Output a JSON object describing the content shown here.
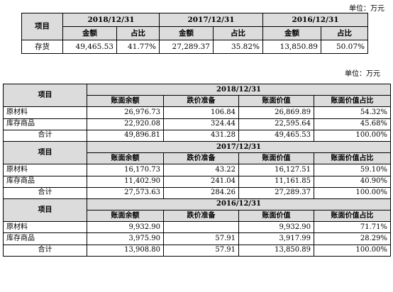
{
  "unit_label": "单位：万元",
  "summary": {
    "item_header": "项目",
    "dates": [
      "2018/12/31",
      "2017/12/31",
      "2016/12/31"
    ],
    "sub_headers": [
      "金额",
      "占比"
    ],
    "row": {
      "label": "存货",
      "values": [
        "49,465.53",
        "41.77%",
        "27,289.37",
        "35.82%",
        "13,850.89",
        "50.07%"
      ]
    }
  },
  "detail": {
    "item_header": "项目",
    "col_headers": [
      "账面余额",
      "跌价准备",
      "账面价值",
      "账面价值占比"
    ],
    "sections": [
      {
        "date": "2018/12/31",
        "rows": [
          {
            "label": "原材料",
            "values": [
              "26,976.73",
              "106.84",
              "26,869.89",
              "54.32%"
            ]
          },
          {
            "label": "库存商品",
            "values": [
              "22,920.08",
              "324.44",
              "22,595.64",
              "45.68%"
            ]
          },
          {
            "label": "合计",
            "values": [
              "49,896.81",
              "431.28",
              "49,465.53",
              "100.00%"
            ]
          }
        ]
      },
      {
        "date": "2017/12/31",
        "rows": [
          {
            "label": "原材料",
            "values": [
              "16,170.73",
              "43.22",
              "16,127.51",
              "59.10%"
            ]
          },
          {
            "label": "库存商品",
            "values": [
              "11,402.90",
              "241.04",
              "11,161.85",
              "40.90%"
            ]
          },
          {
            "label": "合计",
            "values": [
              "27,573.63",
              "284.26",
              "27,289.37",
              "100.00%"
            ]
          }
        ]
      },
      {
        "date": "2016/12/31",
        "rows": [
          {
            "label": "原材料",
            "values": [
              "9,932.90",
              "",
              "9,932.90",
              "71.71%"
            ]
          },
          {
            "label": "库存商品",
            "values": [
              "3,975.90",
              "57.91",
              "3,917.99",
              "28.29%"
            ]
          },
          {
            "label": "合计",
            "values": [
              "13,908.80",
              "57.91",
              "13,850.89",
              "100.00%"
            ]
          }
        ]
      }
    ]
  }
}
